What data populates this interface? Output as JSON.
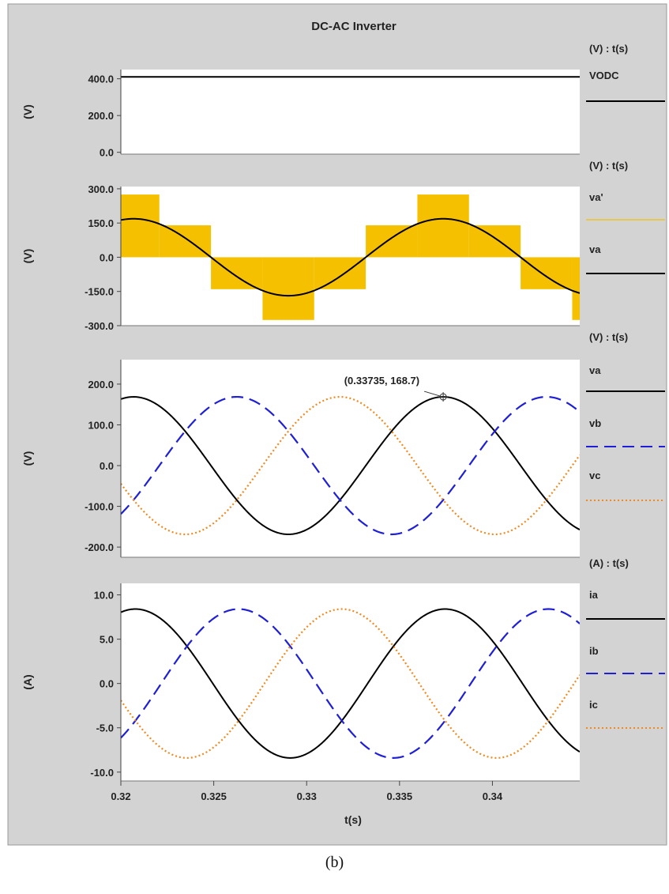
{
  "colors": {
    "frame_bg": "#d3d3d3",
    "plot_bg": "#ffffff",
    "va": "#000000",
    "vb": "#1f1fd6",
    "vc": "#f08a20",
    "va_prime": "#f5c000"
  },
  "caption": "(b)",
  "chart_data": [
    {
      "type": "line",
      "title": "DC-AC Inverter",
      "xlabel": "",
      "ylabel": "(V)",
      "unit_header": "(V) : t(s)",
      "xlim": [
        0.32,
        0.3447
      ],
      "ylim": [
        -10,
        450
      ],
      "yticks": [
        "400.0",
        "200.0",
        "0.0"
      ],
      "series": [
        {
          "name": "VODC",
          "style": "solid",
          "color": "#000000",
          "kind": "constant",
          "value": 410
        }
      ]
    },
    {
      "type": "line",
      "xlabel": "",
      "ylabel": "(V)",
      "unit_header": "(V) : t(s)",
      "xlim": [
        0.32,
        0.3447
      ],
      "ylim": [
        -300,
        310
      ],
      "yticks": [
        "300.0",
        "150.0",
        "0.0",
        "-150.0",
        "-300.0"
      ],
      "series": [
        {
          "name": "va'",
          "style": "band",
          "color": "#f5c000",
          "kind": "six-step",
          "frequency_hz": 60,
          "phase_peak_t": 0.33735,
          "levels": [
            [
              0,
              275
            ],
            [
              0,
              140
            ],
            [
              -140,
              0
            ],
            [
              -275,
              0
            ],
            [
              -140,
              0
            ],
            [
              0,
              140
            ]
          ]
        },
        {
          "name": "va",
          "style": "solid",
          "color": "#000000",
          "kind": "sine",
          "amplitude": 168.7,
          "frequency_hz": 60,
          "phase_peak_t": 0.33735
        }
      ]
    },
    {
      "type": "line",
      "xlabel": "",
      "ylabel": "(V)",
      "unit_header": "(V) : t(s)",
      "xlim": [
        0.32,
        0.3447
      ],
      "ylim": [
        -225,
        260
      ],
      "yticks": [
        "200.0",
        "100.0",
        "0.0",
        "-100.0",
        "-200.0"
      ],
      "annotation": {
        "text": "(0.33735, 168.7)",
        "x": 0.33735,
        "y": 168.7
      },
      "series": [
        {
          "name": "va",
          "style": "solid",
          "color": "#000000",
          "kind": "sine",
          "amplitude": 168.7,
          "frequency_hz": 60,
          "phase_peak_t": 0.33735
        },
        {
          "name": "vb",
          "style": "dash",
          "color": "#1f1fd6",
          "kind": "sine",
          "amplitude": 168.7,
          "frequency_hz": 60,
          "phase_peak_t": 0.33735,
          "phase_shift_deg": -120
        },
        {
          "name": "vc",
          "style": "dot",
          "color": "#f08a20",
          "kind": "sine",
          "amplitude": 168.7,
          "frequency_hz": 60,
          "phase_peak_t": 0.33735,
          "phase_shift_deg": 120
        }
      ]
    },
    {
      "type": "line",
      "xlabel": "t(s)",
      "ylabel": "(A)",
      "unit_header": "(A) : t(s)",
      "xlim": [
        0.32,
        0.3447
      ],
      "ylim": [
        -11,
        11.3
      ],
      "yticks": [
        "10.0",
        "5.0",
        "0.0",
        "-5.0",
        "-10.0"
      ],
      "xticks": [
        {
          "label": "0.32",
          "value": 0.32
        },
        {
          "label": "0.325",
          "value": 0.325
        },
        {
          "label": "0.33",
          "value": 0.33
        },
        {
          "label": "0.335",
          "value": 0.335
        },
        {
          "label": "0.34",
          "value": 0.34
        }
      ],
      "series": [
        {
          "name": "ia",
          "style": "solid",
          "color": "#000000",
          "kind": "sine",
          "amplitude": 8.4,
          "frequency_hz": 60,
          "phase_peak_t": 0.33745
        },
        {
          "name": "ib",
          "style": "dash",
          "color": "#1f1fd6",
          "kind": "sine",
          "amplitude": 8.4,
          "frequency_hz": 60,
          "phase_peak_t": 0.33745,
          "phase_shift_deg": -120
        },
        {
          "name": "ic",
          "style": "dot",
          "color": "#f08a20",
          "kind": "sine",
          "amplitude": 8.4,
          "frequency_hz": 60,
          "phase_peak_t": 0.33745,
          "phase_shift_deg": 120
        }
      ]
    }
  ]
}
